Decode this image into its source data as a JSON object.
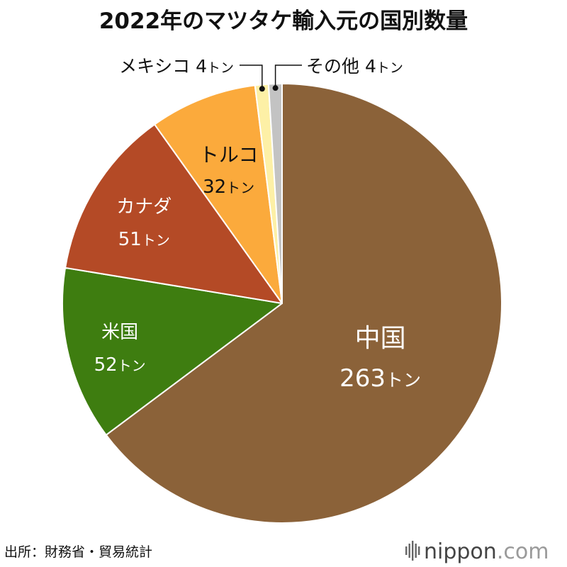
{
  "chart_data": {
    "type": "pie",
    "title": "2022年のマツタケ輸入元の国別数量",
    "unit": "トン",
    "slices": [
      {
        "name": "中国",
        "value": 263,
        "value_label": "263",
        "color": "#8b6239",
        "text_color": "#ffffff"
      },
      {
        "name": "米国",
        "value": 52,
        "value_label": "52",
        "color": "#3e7d10",
        "text_color": "#ffffff"
      },
      {
        "name": "カナダ",
        "value": 51,
        "value_label": "51",
        "color": "#b44a26",
        "text_color": "#ffffff"
      },
      {
        "name": "トルコ",
        "value": 32,
        "value_label": "32",
        "color": "#fbaa3c",
        "text_color": "#111111"
      },
      {
        "name": "メキシコ",
        "value": 4,
        "value_label": "4",
        "color": "#fdf0a6",
        "text_color": "#111111"
      },
      {
        "name": "その他",
        "value": 4,
        "value_label": "4",
        "color": "#c3c3c3",
        "text_color": "#111111"
      }
    ],
    "start": "12 o'clock",
    "direction": "clockwise"
  },
  "source": "出所：財務省・貿易統計",
  "brand": {
    "name": "nippon",
    "tld": ".com"
  },
  "colors": {
    "slice_border": "#ffffff",
    "leader_line": "#111111",
    "logo": "#666666"
  }
}
